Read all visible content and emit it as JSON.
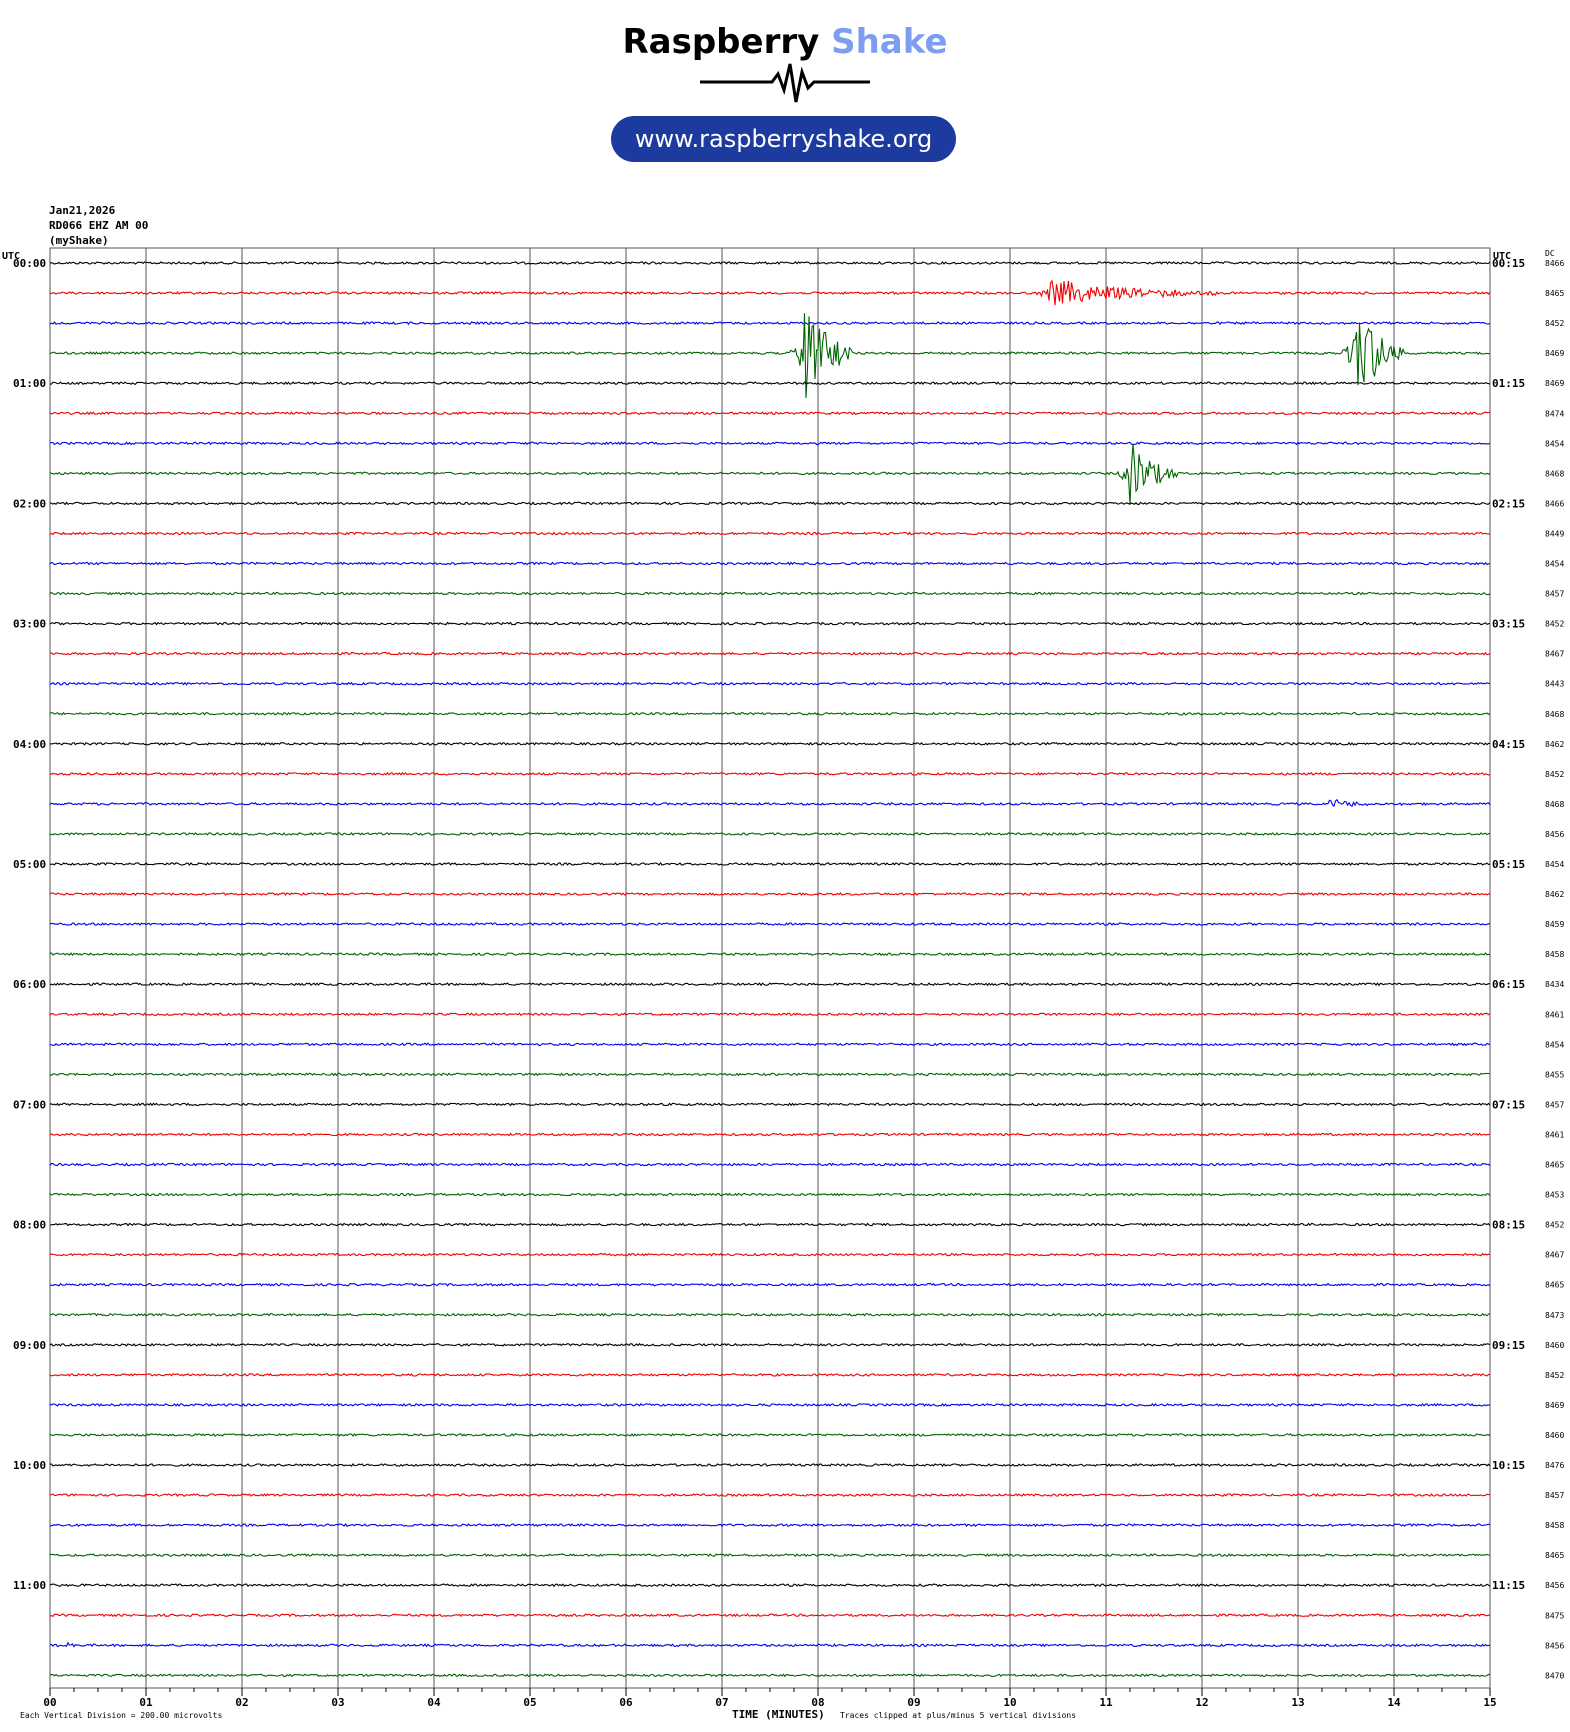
{
  "logo": {
    "word1": "Raspberry",
    "word2": "Shake",
    "url": "www.raspberryshake.org"
  },
  "header": {
    "date": "Jan21,2026",
    "station": "RD066 EHZ AM 00",
    "owner": "(myShake)"
  },
  "axes": {
    "left_label": "UTC",
    "right_label": "UTC",
    "dc_label": "DC"
  },
  "footer": {
    "scale_note": "Each Vertical Division =  200.00 microvolts",
    "xlabel": "TIME (MINUTES)",
    "clip_note": "Traces clipped at plus/minus 5 vertical divisions"
  },
  "colors": {
    "trace_cycle": [
      "#000000",
      "#ee0000",
      "#0000ee",
      "#006400"
    ],
    "grid": "#555555",
    "logo_blue": "#1d3a9e"
  },
  "chart_data": {
    "type": "line",
    "title": "",
    "xlabel": "TIME (MINUTES)",
    "xlim": [
      0,
      15
    ],
    "x_ticks": [
      "00",
      "01",
      "02",
      "03",
      "04",
      "05",
      "06",
      "07",
      "08",
      "09",
      "10",
      "11",
      "12",
      "13",
      "14",
      "15"
    ],
    "left_times": [
      "00:00",
      "01:00",
      "02:00",
      "03:00",
      "04:00",
      "05:00",
      "06:00",
      "07:00",
      "08:00",
      "09:00",
      "10:00",
      "11:00"
    ],
    "right_times": [
      "00:15",
      "01:15",
      "02:15",
      "03:15",
      "04:15",
      "05:15",
      "06:15",
      "07:15",
      "08:15",
      "09:15",
      "10:15",
      "11:15"
    ],
    "dc_values": [
      "8466",
      "8465",
      "8452",
      "8469",
      "8469",
      "8474",
      "8454",
      "8468",
      "8466",
      "8449",
      "8454",
      "8457",
      "8452",
      "8467",
      "8443",
      "8468",
      "8462",
      "8452",
      "8468",
      "8456",
      "8454",
      "8462",
      "8459",
      "8458",
      "8434",
      "8461",
      "8454",
      "8455",
      "8457",
      "8461",
      "8465",
      "8453",
      "8452",
      "8467",
      "8465",
      "8473",
      "8460",
      "8452",
      "8469",
      "8460",
      "8476",
      "8457",
      "8458",
      "8465",
      "8456",
      "8475",
      "8456",
      "8470"
    ],
    "events": [
      {
        "row": 3,
        "minute": 7.85,
        "amplitude_divisions": 5,
        "duration_min": 0.5
      },
      {
        "row": 3,
        "minute": 13.6,
        "amplitude_divisions": 5,
        "duration_min": 0.5
      },
      {
        "row": 7,
        "minute": 11.25,
        "amplitude_divisions": 3,
        "duration_min": 0.5
      },
      {
        "row": 1,
        "minute": 10.4,
        "amplitude_divisions": 1.2,
        "duration_min": 1.8
      },
      {
        "row": 18,
        "minute": 13.3,
        "amplitude_divisions": 0.4,
        "duration_min": 0.8
      },
      {
        "row": 46,
        "minute": 0.2,
        "amplitude_divisions": 0.6,
        "duration_min": 0.05
      }
    ],
    "clip_divisions": 5
  }
}
